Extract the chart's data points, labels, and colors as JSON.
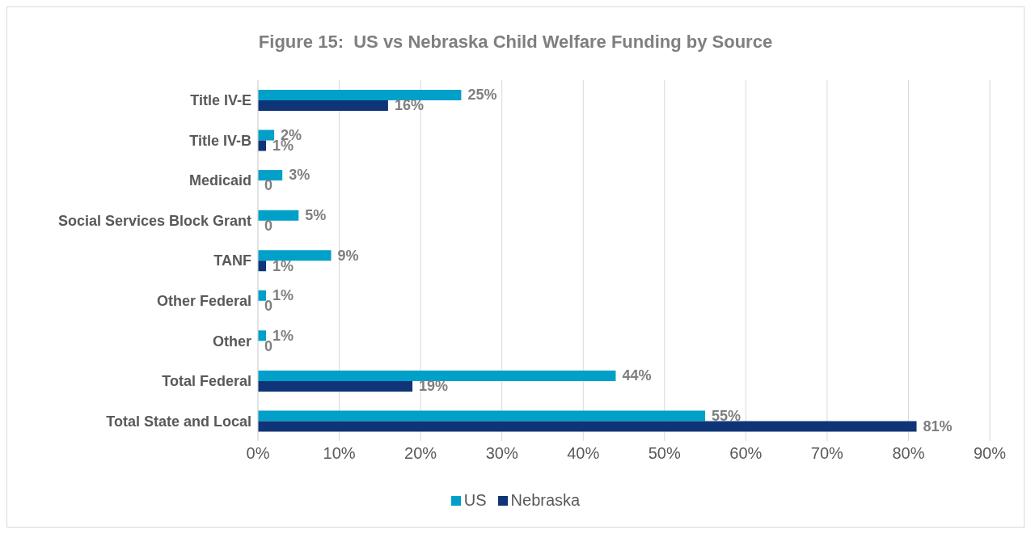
{
  "chart_data": {
    "type": "bar",
    "orientation": "horizontal",
    "title": "Figure 15:  US vs Nebraska Child Welfare Funding by Source",
    "categories": [
      "Title IV-E",
      "Title IV-B",
      "Medicaid",
      "Social Services Block Grant",
      "TANF",
      "Other Federal",
      "Other",
      "Total Federal",
      "Total State and Local"
    ],
    "series": [
      {
        "name": "US",
        "color": "#00a0c8",
        "values": [
          25,
          2,
          3,
          5,
          9,
          1,
          1,
          44,
          55
        ],
        "value_labels": [
          "25%",
          "2%",
          "3%",
          "5%",
          "9%",
          "1%",
          "1%",
          "44%",
          "55%"
        ]
      },
      {
        "name": "Nebraska",
        "color": "#0f3478",
        "values": [
          16,
          1,
          0,
          0,
          1,
          0,
          0,
          19,
          81
        ],
        "value_labels": [
          "16%",
          "1%",
          "0",
          "0",
          "1%",
          "0",
          "0",
          "19%",
          "81%"
        ]
      }
    ],
    "xlim": [
      0,
      90
    ],
    "xticks": [
      {
        "value": 0,
        "label": "0%"
      },
      {
        "value": 10,
        "label": "10%"
      },
      {
        "value": 20,
        "label": "20%"
      },
      {
        "value": 30,
        "label": "30%"
      },
      {
        "value": 40,
        "label": "40%"
      },
      {
        "value": 50,
        "label": "50%"
      },
      {
        "value": 60,
        "label": "60%"
      },
      {
        "value": 70,
        "label": "70%"
      },
      {
        "value": 80,
        "label": "80%"
      },
      {
        "value": 90,
        "label": "90%"
      }
    ],
    "grid": "x",
    "legend": "bottom"
  }
}
